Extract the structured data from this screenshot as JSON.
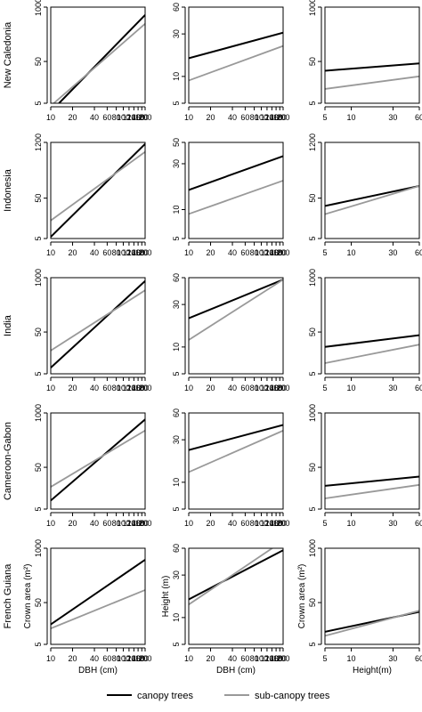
{
  "chart_data": {
    "type": "line",
    "rows": [
      {
        "label": "New Caledonia",
        "rows_idx": 0
      },
      {
        "label": "Indonesia",
        "rows_idx": 1
      },
      {
        "label": "India",
        "rows_idx": 2
      },
      {
        "label": "Cameroon-Gabon",
        "rows_idx": 3
      },
      {
        "label": "French Guiana",
        "rows_idx": 4
      }
    ],
    "columns": [
      {
        "xlabel": "DBH (cm)",
        "ylabel": "Crown area (m²)",
        "xscale": "log",
        "yscale": "log",
        "xlim": [
          10,
          200
        ],
        "xticks": [
          "10",
          "20",
          "40",
          "60",
          "80",
          "100",
          "120",
          "140",
          "160",
          "180",
          "200"
        ]
      },
      {
        "xlabel": "DBH (cm)",
        "ylabel": "Height (m)",
        "xscale": "log",
        "yscale": "log",
        "xlim": [
          10,
          200
        ],
        "xticks": [
          "10",
          "20",
          "40",
          "60",
          "80",
          "100",
          "120",
          "140",
          "160",
          "180",
          "200"
        ]
      },
      {
        "xlabel": "Height(m)",
        "ylabel": "Crown area (m²)",
        "xscale": "log",
        "yscale": "log",
        "xlim": [
          5,
          60
        ],
        "xticks": [
          "5",
          "10",
          "30",
          "60"
        ]
      }
    ],
    "panels": [
      [
        {
          "yticks": [
            "5",
            "50",
            "1000"
          ],
          "ylim": [
            5,
            1000
          ],
          "xlim": [
            10,
            200
          ],
          "series": [
            {
              "name": "canopy trees",
              "x": [
                13,
                200
              ],
              "y": [
                5,
                650
              ]
            },
            {
              "name": "sub-canopy trees",
              "x": [
                11,
                200
              ],
              "y": [
                5,
                400
              ]
            }
          ]
        },
        {
          "yticks": [
            "5",
            "10",
            "30",
            "60"
          ],
          "ylim": [
            5,
            60
          ],
          "xlim": [
            10,
            200
          ],
          "series": [
            {
              "name": "canopy trees",
              "x": [
                10,
                200
              ],
              "y": [
                16,
                31
              ]
            },
            {
              "name": "sub-canopy trees",
              "x": [
                10,
                200
              ],
              "y": [
                9,
                22
              ]
            }
          ]
        },
        {
          "yticks": [
            "5",
            "50",
            "1000"
          ],
          "ylim": [
            5,
            1000
          ],
          "xlim": [
            5,
            60
          ],
          "series": [
            {
              "name": "canopy trees",
              "x": [
                5,
                60
              ],
              "y": [
                30,
                45
              ]
            },
            {
              "name": "sub-canopy trees",
              "x": [
                5,
                60
              ],
              "y": [
                11,
                22
              ]
            }
          ]
        }
      ],
      [
        {
          "yticks": [
            "5",
            "50",
            "1200"
          ],
          "ylim": [
            5,
            1200
          ],
          "xlim": [
            10,
            200
          ],
          "series": [
            {
              "name": "canopy trees",
              "x": [
                10,
                200
              ],
              "y": [
                5.5,
                1100
              ]
            },
            {
              "name": "sub-canopy trees",
              "x": [
                10,
                200
              ],
              "y": [
                14,
                700
              ]
            }
          ]
        },
        {
          "yticks": [
            "5",
            "10",
            "30",
            "50"
          ],
          "ylim": [
            5,
            50
          ],
          "xlim": [
            10,
            200
          ],
          "series": [
            {
              "name": "canopy trees",
              "x": [
                10,
                200
              ],
              "y": [
                16,
                36
              ]
            },
            {
              "name": "sub-canopy trees",
              "x": [
                10,
                200
              ],
              "y": [
                9,
                20
              ]
            }
          ]
        },
        {
          "yticks": [
            "5",
            "50",
            "1200"
          ],
          "ylim": [
            5,
            1200
          ],
          "xlim": [
            5,
            60
          ],
          "series": [
            {
              "name": "canopy trees",
              "x": [
                5,
                60
              ],
              "y": [
                32,
                100
              ]
            },
            {
              "name": "sub-canopy trees",
              "x": [
                5,
                60
              ],
              "y": [
                20,
                100
              ]
            }
          ]
        }
      ],
      [
        {
          "yticks": [
            "5",
            "50",
            "1000"
          ],
          "ylim": [
            5,
            1000
          ],
          "xlim": [
            10,
            200
          ],
          "series": [
            {
              "name": "canopy trees",
              "x": [
                10,
                200
              ],
              "y": [
                7,
                830
              ]
            },
            {
              "name": "sub-canopy trees",
              "x": [
                10,
                200
              ],
              "y": [
                18,
                500
              ]
            }
          ]
        },
        {
          "yticks": [
            "5",
            "10",
            "30",
            "60"
          ],
          "ylim": [
            5,
            60
          ],
          "xlim": [
            10,
            200
          ],
          "series": [
            {
              "name": "canopy trees",
              "x": [
                10,
                200
              ],
              "y": [
                21,
                57
              ]
            },
            {
              "name": "sub-canopy trees",
              "x": [
                10,
                200
              ],
              "y": [
                12,
                57
              ]
            }
          ]
        },
        {
          "yticks": [
            "5",
            "50",
            "1000"
          ],
          "ylim": [
            5,
            1000
          ],
          "xlim": [
            5,
            60
          ],
          "series": [
            {
              "name": "canopy trees",
              "x": [
                5,
                60
              ],
              "y": [
                22,
                42
              ]
            },
            {
              "name": "sub-canopy trees",
              "x": [
                5,
                60
              ],
              "y": [
                9,
                25
              ]
            }
          ]
        }
      ],
      [
        {
          "yticks": [
            "5",
            "50",
            "1000"
          ],
          "ylim": [
            5,
            1000
          ],
          "xlim": [
            10,
            200
          ],
          "series": [
            {
              "name": "canopy trees",
              "x": [
                10,
                200
              ],
              "y": [
                8,
                700
              ]
            },
            {
              "name": "sub-canopy trees",
              "x": [
                10,
                200
              ],
              "y": [
                17,
                380
              ]
            }
          ]
        },
        {
          "yticks": [
            "5",
            "10",
            "30",
            "60"
          ],
          "ylim": [
            5,
            60
          ],
          "xlim": [
            10,
            200
          ],
          "series": [
            {
              "name": "canopy trees",
              "x": [
                10,
                200
              ],
              "y": [
                23,
                44
              ]
            },
            {
              "name": "sub-canopy trees",
              "x": [
                10,
                200
              ],
              "y": [
                13,
                38
              ]
            }
          ]
        },
        {
          "yticks": [
            "5",
            "50",
            "1000"
          ],
          "ylim": [
            5,
            1000
          ],
          "xlim": [
            5,
            60
          ],
          "series": [
            {
              "name": "canopy trees",
              "x": [
                5,
                60
              ],
              "y": [
                18,
                30
              ]
            },
            {
              "name": "sub-canopy trees",
              "x": [
                5,
                60
              ],
              "y": [
                9,
                19
              ]
            }
          ]
        }
      ],
      [
        {
          "yticks": [
            "5",
            "50",
            "1000"
          ],
          "ylim": [
            5,
            1000
          ],
          "xlim": [
            10,
            200
          ],
          "series": [
            {
              "name": "canopy trees",
              "x": [
                10,
                200
              ],
              "y": [
                15,
                530
              ]
            },
            {
              "name": "sub-canopy trees",
              "x": [
                10,
                200
              ],
              "y": [
                12,
                100
              ]
            }
          ]
        },
        {
          "yticks": [
            "5",
            "10",
            "30",
            "60"
          ],
          "ylim": [
            5,
            60
          ],
          "xlim": [
            10,
            200
          ],
          "series": [
            {
              "name": "canopy trees",
              "x": [
                10,
                200
              ],
              "y": [
                16,
                57
              ]
            },
            {
              "name": "sub-canopy trees",
              "x": [
                10,
                150
              ],
              "y": [
                14,
                62
              ]
            }
          ]
        },
        {
          "yticks": [
            "5",
            "50",
            "1000"
          ],
          "ylim": [
            5,
            1000
          ],
          "xlim": [
            5,
            60
          ],
          "series": [
            {
              "name": "canopy trees",
              "x": [
                5,
                60
              ],
              "y": [
                10,
                30
              ]
            },
            {
              "name": "sub-canopy trees",
              "x": [
                5,
                60
              ],
              "y": [
                8,
                32
              ]
            }
          ]
        }
      ]
    ],
    "legend": {
      "placement": "bottom",
      "items": [
        {
          "name": "canopy trees",
          "color": "#000000"
        },
        {
          "name": "sub-canopy trees",
          "color": "#999999"
        }
      ]
    },
    "colors": {
      "canopy trees": "#000000",
      "sub-canopy trees": "#999999"
    }
  }
}
